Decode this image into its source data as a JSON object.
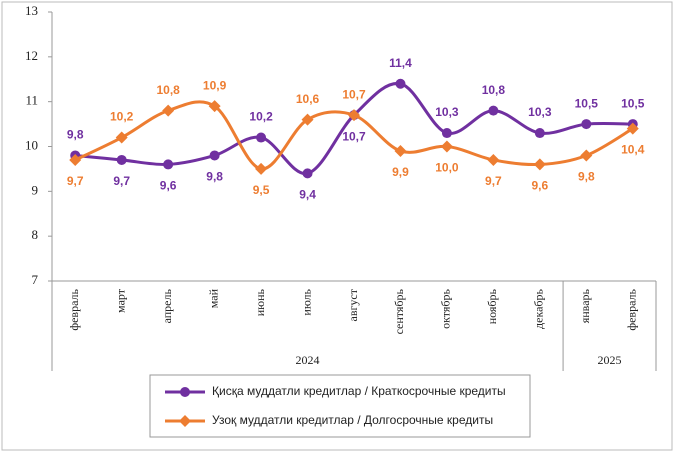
{
  "chart_data": {
    "type": "line",
    "categories": [
      "февраль",
      "март",
      "апрель",
      "май",
      "июнь",
      "июль",
      "август",
      "сентябрь",
      "октябрь",
      "ноябрь",
      "декабрь",
      "январь",
      "февраль"
    ],
    "year_groups": [
      {
        "label": "2024",
        "count": 11
      },
      {
        "label": "2025",
        "count": 2
      }
    ],
    "series": [
      {
        "name": "Қисқа муддатли кредитлар  / Краткосрочные кредиты",
        "color": "#7030a0",
        "marker": "circle",
        "values": [
          9.8,
          9.7,
          9.6,
          9.8,
          10.2,
          9.4,
          10.7,
          11.4,
          10.3,
          10.8,
          10.3,
          10.5,
          10.5
        ],
        "value_labels": [
          "9,8",
          "9,7",
          "9,6",
          "9,8",
          "10,2",
          "9,4",
          "10,7",
          "11,4",
          "10,3",
          "10,8",
          "10,3",
          "10,5",
          "10,5"
        ]
      },
      {
        "name": "Узоқ муддатли  кредитлар  / Долгосрочные кредиты",
        "color": "#ed7d31",
        "marker": "diamond",
        "values": [
          9.7,
          10.2,
          10.8,
          10.9,
          9.5,
          10.6,
          10.7,
          9.9,
          10.0,
          9.7,
          9.6,
          9.8,
          10.4
        ],
        "value_labels": [
          "9,7",
          "10,2",
          "10,8",
          "10,9",
          "9,5",
          "10,6",
          "10,7",
          "9,9",
          "10,0",
          "9,7",
          "9,6",
          "9,8",
          "10,4"
        ]
      }
    ],
    "ylim": [
      7,
      13
    ],
    "yticks": [
      7,
      8,
      9,
      10,
      11,
      12,
      13
    ],
    "grid": false
  }
}
